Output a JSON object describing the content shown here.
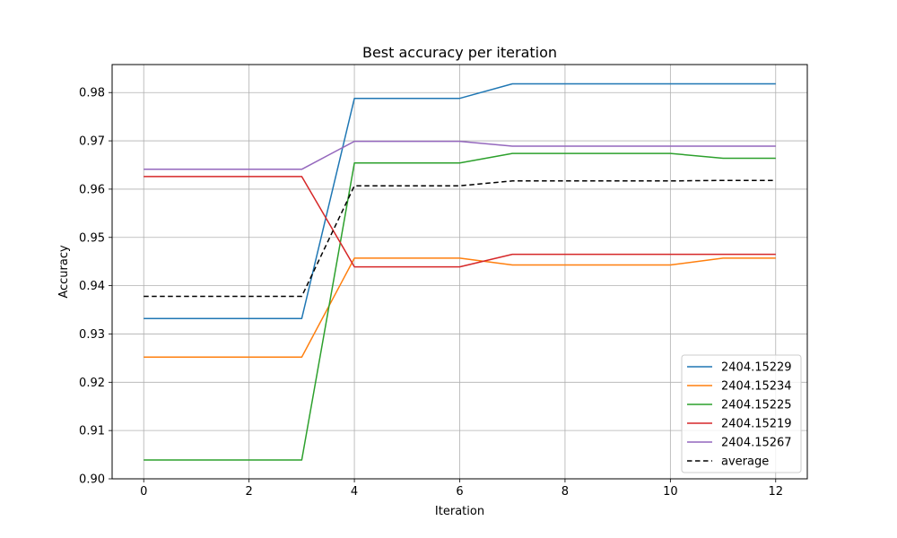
{
  "chart_data": {
    "type": "line",
    "title": "Best accuracy per iteration",
    "xlabel": "Iteration",
    "ylabel": "Accuracy",
    "x": [
      0,
      1,
      2,
      3,
      4,
      5,
      6,
      7,
      8,
      9,
      10,
      11,
      12
    ],
    "xlim": [
      -0.6,
      12.6
    ],
    "ylim": [
      0.9,
      0.9858
    ],
    "xticks": [
      0,
      2,
      4,
      6,
      8,
      10,
      12
    ],
    "yticks": [
      0.9,
      0.91,
      0.92,
      0.93,
      0.94,
      0.95,
      0.96,
      0.97,
      0.98
    ],
    "ytick_labels": [
      "0.90",
      "0.91",
      "0.92",
      "0.93",
      "0.94",
      "0.95",
      "0.96",
      "0.97",
      "0.98"
    ],
    "grid": true,
    "legend_position": "bottom-right",
    "series": [
      {
        "name": "2404.15229",
        "color": "#1f77b4",
        "dashed": false,
        "values": [
          0.9332,
          0.9332,
          0.9332,
          0.9332,
          0.9788,
          0.9788,
          0.9788,
          0.9818,
          0.9818,
          0.9818,
          0.9818,
          0.9818,
          0.9818
        ]
      },
      {
        "name": "2404.15234",
        "color": "#ff7f0e",
        "dashed": false,
        "values": [
          0.9252,
          0.9252,
          0.9252,
          0.9252,
          0.9457,
          0.9457,
          0.9457,
          0.9443,
          0.9443,
          0.9443,
          0.9443,
          0.9457,
          0.9457
        ]
      },
      {
        "name": "2404.15225",
        "color": "#2ca02c",
        "dashed": false,
        "values": [
          0.9039,
          0.9039,
          0.9039,
          0.9039,
          0.9654,
          0.9654,
          0.9654,
          0.9674,
          0.9674,
          0.9674,
          0.9674,
          0.9664,
          0.9664
        ]
      },
      {
        "name": "2404.15219",
        "color": "#d62728",
        "dashed": false,
        "values": [
          0.9626,
          0.9626,
          0.9626,
          0.9626,
          0.9439,
          0.9439,
          0.9439,
          0.9465,
          0.9465,
          0.9465,
          0.9465,
          0.9465,
          0.9465
        ]
      },
      {
        "name": "2404.15267",
        "color": "#9467bd",
        "dashed": false,
        "values": [
          0.9641,
          0.9641,
          0.9641,
          0.9641,
          0.9699,
          0.9699,
          0.9699,
          0.9689,
          0.9689,
          0.9689,
          0.9689,
          0.9689,
          0.9689
        ]
      },
      {
        "name": "average",
        "color": "#000000",
        "dashed": true,
        "values": [
          0.9378,
          0.9378,
          0.9378,
          0.9378,
          0.9607,
          0.9607,
          0.9607,
          0.9617,
          0.9617,
          0.9617,
          0.9617,
          0.9618,
          0.9618
        ]
      }
    ]
  }
}
